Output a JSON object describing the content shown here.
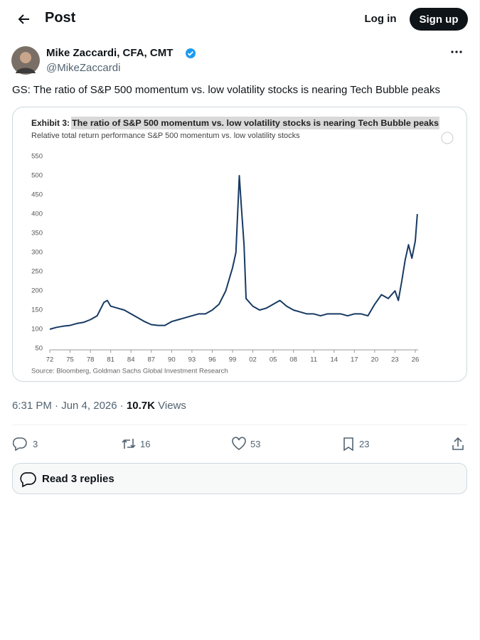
{
  "header": {
    "title": "Post",
    "login": "Log in",
    "signup": "Sign up"
  },
  "author": {
    "name": "Mike Zaccardi, CFA, CMT",
    "handle": "@MikeZaccardi"
  },
  "text": "GS: The ratio of S&P 500 momentum vs. low volatility stocks is nearing Tech Bubble peaks",
  "chart_data": {
    "type": "line",
    "label": "Exhibit 3:",
    "title": "The ratio of S&P 500 momentum vs. low volatility stocks is nearing Tech Bubble peaks",
    "subtitle": "Relative total return performance S&P 500 momentum vs. low volatility stocks",
    "source": "Source: Bloomberg, Goldman Sachs Global Investment Research",
    "color": "#173a63",
    "x": [
      1972,
      1973,
      1974,
      1975,
      1976,
      1977,
      1978,
      1979,
      1980,
      1980.5,
      1981,
      1982,
      1983,
      1984,
      1985,
      1986,
      1987,
      1988,
      1989,
      1990,
      1991,
      1992,
      1993,
      1994,
      1995,
      1996,
      1997,
      1998,
      1999,
      1999.5,
      2000,
      2000.3,
      2000.7,
      2001,
      2002,
      2003,
      2004,
      2005,
      2006,
      2007,
      2008,
      2009,
      2010,
      2011,
      2012,
      2013,
      2014,
      2015,
      2016,
      2017,
      2018,
      2019,
      2020,
      2021,
      2022,
      2023,
      2023.5,
      2024,
      2024.5,
      2025,
      2025.5,
      2026,
      2026.3
    ],
    "values": [
      100,
      105,
      108,
      110,
      115,
      118,
      125,
      135,
      170,
      175,
      160,
      155,
      150,
      140,
      130,
      120,
      112,
      110,
      110,
      120,
      125,
      130,
      135,
      140,
      140,
      150,
      165,
      200,
      260,
      300,
      500,
      420,
      320,
      180,
      160,
      150,
      155,
      165,
      175,
      160,
      150,
      145,
      140,
      140,
      135,
      140,
      140,
      140,
      135,
      140,
      140,
      135,
      165,
      190,
      180,
      200,
      175,
      225,
      280,
      320,
      285,
      330,
      400
    ],
    "xlim": [
      1972,
      2026
    ],
    "xticks": [
      {
        "value": 1972,
        "label": "72"
      },
      {
        "value": 1975,
        "label": "75"
      },
      {
        "value": 1978,
        "label": "78"
      },
      {
        "value": 1981,
        "label": "81"
      },
      {
        "value": 1984,
        "label": "84"
      },
      {
        "value": 1987,
        "label": "87"
      },
      {
        "value": 1990,
        "label": "90"
      },
      {
        "value": 1993,
        "label": "93"
      },
      {
        "value": 1996,
        "label": "96"
      },
      {
        "value": 1999,
        "label": "99"
      },
      {
        "value": 2002,
        "label": "02"
      },
      {
        "value": 2005,
        "label": "05"
      },
      {
        "value": 2008,
        "label": "08"
      },
      {
        "value": 2011,
        "label": "11"
      },
      {
        "value": 2014,
        "label": "14"
      },
      {
        "value": 2017,
        "label": "17"
      },
      {
        "value": 2020,
        "label": "20"
      },
      {
        "value": 2023,
        "label": "23"
      },
      {
        "value": 2026,
        "label": "26"
      }
    ],
    "ylim": [
      50,
      550
    ],
    "yticks": [
      50,
      100,
      150,
      200,
      250,
      300,
      350,
      400,
      450,
      500,
      550
    ]
  },
  "meta": {
    "time": "6:31 PM · Jun 4, 2026 ·",
    "views": "10.7K",
    "views_label": "Views"
  },
  "actions": {
    "replies": 3,
    "reposts": 16,
    "likes": 53,
    "bookmarks": 23
  },
  "read_replies": "Read 3 replies"
}
